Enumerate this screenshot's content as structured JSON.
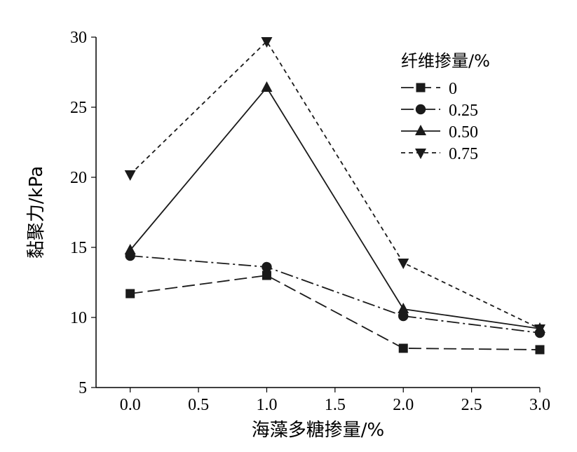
{
  "chart_data": {
    "type": "line",
    "xlabel": "海藻多糖掺量/%",
    "ylabel": "黏聚力/kPa",
    "xlim": [
      -0.25,
      3.0
    ],
    "ylim": [
      5,
      30
    ],
    "x_ticks": [
      "0.0",
      "0.5",
      "1.0",
      "1.5",
      "2.0",
      "2.5",
      "3.0"
    ],
    "y_ticks": [
      "5",
      "10",
      "15",
      "20",
      "25",
      "30"
    ],
    "x": [
      0.0,
      1.0,
      2.0,
      3.0
    ],
    "legend": {
      "title": "纤维掺量/%",
      "position": "top-right"
    },
    "series": [
      {
        "name": "0",
        "values": [
          11.7,
          13.0,
          7.8,
          7.7
        ],
        "marker": "square",
        "dash": "18,7"
      },
      {
        "name": "0.25",
        "values": [
          14.4,
          13.6,
          10.1,
          8.9
        ],
        "marker": "circle",
        "dash": "18,5,3,5"
      },
      {
        "name": "0.50",
        "values": [
          14.8,
          26.4,
          10.6,
          9.2
        ],
        "marker": "triangle-up",
        "dash": ""
      },
      {
        "name": "0.75",
        "values": [
          20.2,
          29.7,
          13.9,
          9.2
        ],
        "marker": "triangle-down",
        "dash": "6,5"
      }
    ]
  }
}
